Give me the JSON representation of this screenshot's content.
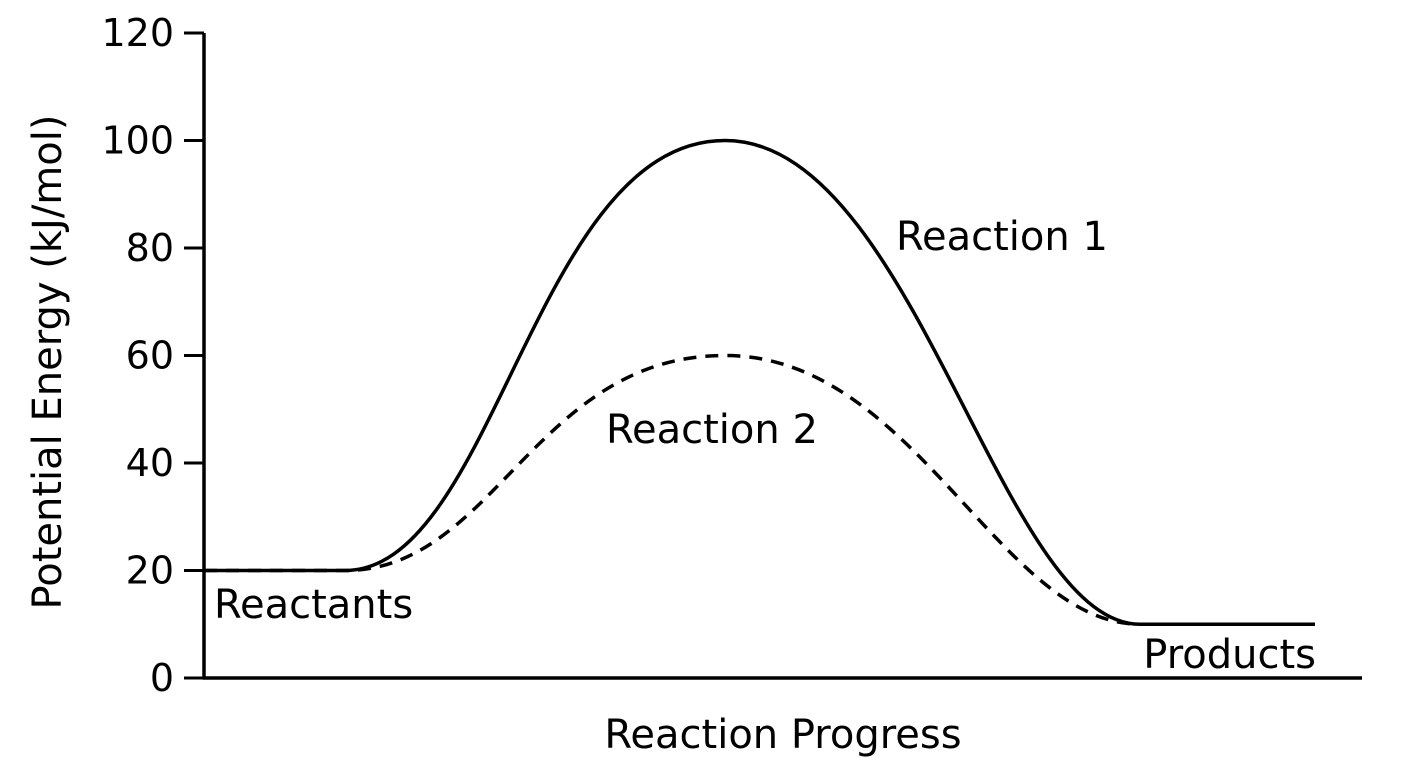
{
  "chart_data": {
    "type": "line",
    "xlabel": "Reaction Progress",
    "ylabel": "Potential Energy (kJ/mol)",
    "ylim": [
      0,
      120
    ],
    "yticks": [
      0,
      20,
      40,
      60,
      80,
      100,
      120
    ],
    "xticks": [],
    "grid": false,
    "legend": "none",
    "reactants_energy": 20,
    "products_energy": 10,
    "series": [
      {
        "name": "Reaction 1",
        "style": "solid",
        "peak": 100
      },
      {
        "name": "Reaction 2",
        "style": "dashed",
        "peak": 60
      }
    ],
    "annotations": [
      {
        "text": "Reactants",
        "near": "reactants-plateau"
      },
      {
        "text": "Products",
        "near": "products-plateau"
      },
      {
        "text": "Reaction 1",
        "near": "reaction-1-curve"
      },
      {
        "text": "Reaction 2",
        "near": "reaction-2-curve"
      }
    ],
    "colors": {
      "line": "#000000",
      "background": "#ffffff"
    }
  }
}
